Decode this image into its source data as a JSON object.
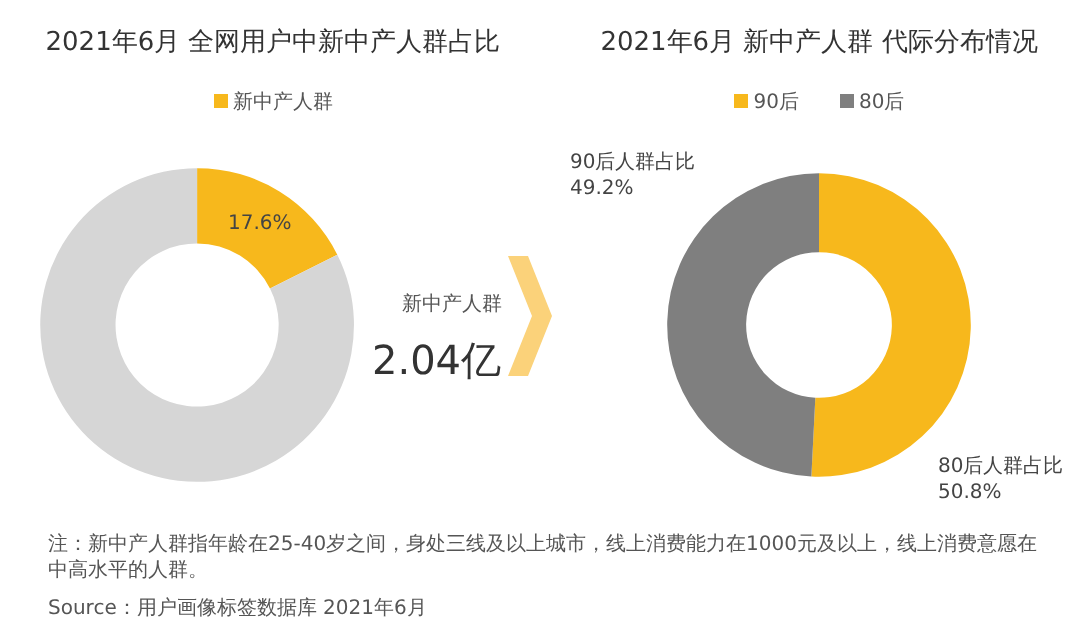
{
  "chart_data": [
    {
      "type": "donut",
      "title": "2021年6月 全网用户中新中产人群占比",
      "categories": [
        "新中产人群",
        null
      ],
      "values": [
        17.6,
        82.4
      ],
      "colors": [
        "#f7b81c",
        "#d6d6d6"
      ],
      "value_labels": [
        "17.6%",
        null
      ],
      "legend": "top",
      "annotations": [
        "新中产人群",
        "2.04亿",
        "注：新中产人群指年龄在25-40岁之间，身处三线及以上城市，线上消费能力在1000元及以上，线上消费意愿在中高水平的人群。",
        "Source：用户画像标签数据库 2021年6月"
      ]
    },
    {
      "type": "donut",
      "title": "2021年6月 新中产人群 代际分布情况",
      "categories": [
        "90后",
        "80后"
      ],
      "values": [
        50.8,
        49.2
      ],
      "colors": [
        "#f7b81c",
        "#7f7f7f"
      ],
      "value_labels": [
        "80后人群占比\n50.8%",
        "90后人群占比\n49.2%"
      ],
      "legend": "top"
    }
  ]
}
